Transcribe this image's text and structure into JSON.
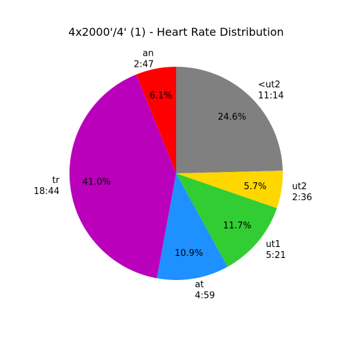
{
  "chart_data": {
    "type": "pie",
    "title": "4x2000'/4' (1) - Heart Rate Distribution",
    "start_angle_deg": 90,
    "direction": "clockwise",
    "slices": [
      {
        "name": "<ut2",
        "duration": "11:14",
        "percent_label": "24.6%",
        "value": 24.6,
        "color": "#808080"
      },
      {
        "name": "ut2",
        "duration": "2:36",
        "percent_label": "5.7%",
        "value": 5.7,
        "color": "#FFD700"
      },
      {
        "name": "ut1",
        "duration": "5:21",
        "percent_label": "11.7%",
        "value": 11.7,
        "color": "#32CD32"
      },
      {
        "name": "at",
        "duration": "4:59",
        "percent_label": "10.9%",
        "value": 10.9,
        "color": "#1E90FF"
      },
      {
        "name": "tr",
        "duration": "18:44",
        "percent_label": "41.0%",
        "value": 41.0,
        "color": "#BA00BA"
      },
      {
        "name": "an",
        "duration": "2:47",
        "percent_label": "6.1%",
        "value": 6.1,
        "color": "#FF0000"
      }
    ]
  }
}
